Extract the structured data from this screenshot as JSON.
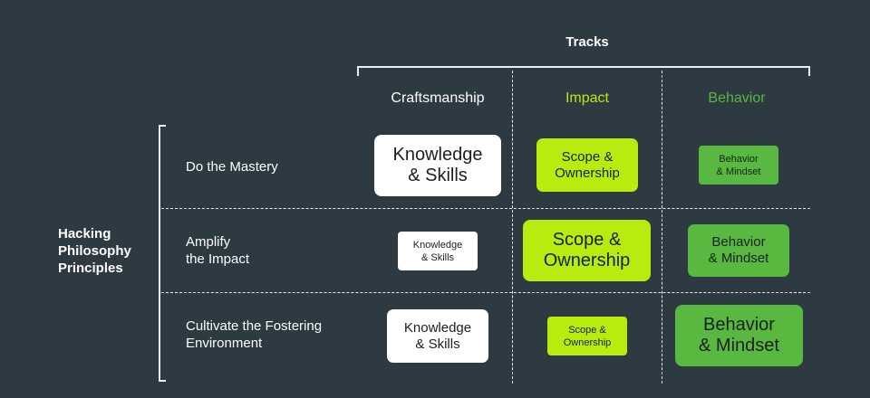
{
  "diagram": {
    "top_title": "Tracks",
    "side_title": "Hacking\nPhilosophy\nPrinciples",
    "columns": [
      {
        "label": "Craftsmanship",
        "color": "#ffffff"
      },
      {
        "label": "Impact",
        "color": "#b6ec0e"
      },
      {
        "label": "Behavior",
        "color": "#58b83f"
      }
    ],
    "rows": [
      {
        "label": "Do the Mastery"
      },
      {
        "label": "Amplify\nthe Impact"
      },
      {
        "label": "Cultivate the Fostering\nEnvironment"
      }
    ],
    "cells": {
      "knowledge_skills": "Knowledge\n& Skills",
      "scope_ownership": "Scope &\nOwnership",
      "behavior_mindset": "Behavior\n& Mindset"
    }
  }
}
